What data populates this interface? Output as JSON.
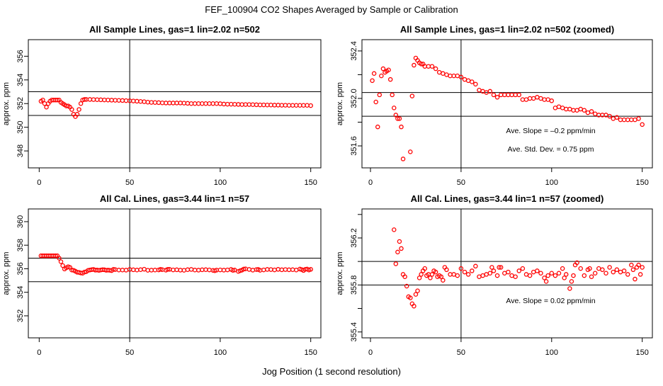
{
  "title": "FEF_100904  CO2 Shapes Averaged by Sample or Calibration",
  "xlabel": "Jog Position (1 second resolution)",
  "chart_data": [
    {
      "type": "scatter",
      "title": "All Sample Lines, gas=1 lin=2.02 n=502",
      "ylabel": "approx. ppm",
      "xlim": [
        -6,
        155.6
      ],
      "ylim": [
        346.57,
        357.4
      ],
      "xticks": [
        0,
        50,
        100,
        150
      ],
      "yticks": [
        348,
        350,
        352,
        354,
        356
      ],
      "yticklabels": [
        "348",
        "350",
        "352",
        "354",
        "356"
      ],
      "hlines": [
        353,
        351
      ],
      "vline": 50,
      "color": "#ff0000",
      "annotations": [],
      "x": [
        1,
        2,
        3,
        4,
        5,
        6,
        7,
        8,
        9,
        10,
        11,
        12,
        13,
        14,
        15,
        16,
        17,
        18,
        19,
        20,
        21,
        22,
        23,
        24,
        25,
        26,
        28,
        30,
        32,
        34,
        36,
        38,
        40,
        42,
        44,
        46,
        48,
        50,
        52,
        54,
        56,
        58,
        60,
        62,
        64,
        66,
        68,
        70,
        72,
        74,
        76,
        78,
        80,
        82,
        84,
        86,
        88,
        90,
        92,
        94,
        96,
        98,
        100,
        102,
        104,
        106,
        108,
        110,
        112,
        114,
        116,
        118,
        120,
        122,
        124,
        126,
        128,
        130,
        132,
        134,
        136,
        138,
        140,
        142,
        144,
        146,
        148,
        150
      ],
      "y": [
        352.2,
        352.3,
        352.0,
        351.7,
        352.0,
        352.2,
        352.3,
        352.3,
        352.3,
        352.3,
        352.3,
        352.1,
        352.0,
        351.9,
        351.8,
        351.8,
        351.7,
        351.5,
        351.1,
        350.9,
        351.1,
        351.5,
        352.0,
        352.3,
        352.35,
        352.35,
        352.35,
        352.34,
        352.33,
        352.32,
        352.31,
        352.3,
        352.29,
        352.28,
        352.27,
        352.26,
        352.25,
        352.24,
        352.22,
        352.2,
        352.18,
        352.16,
        352.12,
        352.1,
        352.09,
        352.08,
        352.06,
        352.05,
        352.05,
        352.05,
        352.05,
        352.05,
        352.04,
        352.02,
        352.0,
        352.0,
        352.0,
        352.0,
        352.0,
        352.0,
        352.0,
        352.0,
        351.99,
        351.96,
        351.95,
        351.95,
        351.94,
        351.93,
        351.92,
        351.92,
        351.92,
        351.91,
        351.9,
        351.89,
        351.89,
        351.88,
        351.88,
        351.87,
        351.87,
        351.86,
        351.86,
        351.85,
        351.85,
        351.85,
        351.85,
        351.85,
        351.85,
        351.83
      ]
    },
    {
      "type": "scatter",
      "title": "All Sample Lines, gas=1 lin=2.02 n=502 (zoomed)",
      "ylabel": "approx. ppm",
      "xlim": [
        -4.7,
        155.6
      ],
      "ylim": [
        351.415,
        352.495
      ],
      "xticks": [
        0,
        50,
        100,
        150
      ],
      "yticks": [
        351.6,
        351.8,
        352.0,
        352.2,
        352.4
      ],
      "yticklabels": [
        "351.6",
        "",
        "352.0",
        "",
        "352.4"
      ],
      "hlines": [
        352.05,
        351.85
      ],
      "vline": 50,
      "color": "#ff0000",
      "annotations": [
        "Ave. Slope =  –0.2  ppm/min",
        "Ave. Std. Dev. =  0.75  ppm"
      ],
      "x": [
        1,
        2,
        3,
        4,
        5,
        6,
        7,
        8,
        9,
        10,
        11,
        12,
        13,
        14,
        15,
        16,
        17,
        18,
        22,
        23,
        24,
        25,
        26,
        27,
        28,
        29,
        30,
        32,
        34,
        36,
        38,
        40,
        42,
        44,
        46,
        48,
        50,
        52,
        54,
        56,
        58,
        60,
        62,
        64,
        66,
        68,
        70,
        72,
        74,
        76,
        78,
        80,
        82,
        84,
        86,
        88,
        90,
        92,
        94,
        96,
        98,
        100,
        102,
        104,
        106,
        108,
        110,
        112,
        114,
        116,
        118,
        120,
        122,
        124,
        126,
        128,
        130,
        132,
        134,
        136,
        138,
        140,
        142,
        144,
        146,
        148,
        150
      ],
      "y": [
        352.15,
        352.21,
        351.97,
        351.76,
        352.03,
        352.19,
        352.25,
        352.22,
        352.23,
        352.24,
        352.16,
        352.03,
        351.92,
        351.86,
        351.83,
        351.83,
        351.76,
        351.49,
        351.55,
        352.02,
        352.28,
        352.34,
        352.32,
        352.3,
        352.29,
        352.29,
        352.27,
        352.27,
        352.27,
        352.25,
        352.22,
        352.21,
        352.2,
        352.19,
        352.19,
        352.19,
        352.18,
        352.16,
        352.15,
        352.14,
        352.12,
        352.07,
        352.06,
        352.05,
        352.06,
        352.03,
        352.01,
        352.03,
        352.03,
        352.03,
        352.03,
        352.03,
        352.03,
        351.99,
        351.99,
        352.0,
        352.0,
        352.01,
        352.0,
        351.99,
        351.99,
        351.98,
        351.92,
        351.93,
        351.92,
        351.91,
        351.91,
        351.9,
        351.9,
        351.91,
        351.9,
        351.88,
        351.89,
        351.87,
        351.86,
        351.86,
        351.86,
        351.85,
        351.83,
        351.84,
        351.82,
        351.82,
        351.82,
        351.82,
        351.82,
        351.83,
        351.78
      ]
    },
    {
      "type": "scatter",
      "title": "All Cal. Lines, gas=3.44 lin=1 n=57",
      "ylabel": "approx. ppm",
      "xlim": [
        -6,
        155.6
      ],
      "ylim": [
        350.13,
        361.08
      ],
      "xticks": [
        0,
        50,
        100,
        150
      ],
      "yticks": [
        352,
        354,
        356,
        358,
        360
      ],
      "yticklabels": [
        "352",
        "354",
        "356",
        "358",
        "360"
      ],
      "hlines": [
        356.9,
        354.9
      ],
      "vline": 50,
      "color": "#ff0000",
      "annotations": [],
      "x": [
        1,
        2,
        3,
        4,
        5,
        6,
        7,
        8,
        9,
        10,
        11,
        12,
        13,
        14,
        15,
        16,
        17,
        18,
        19,
        20,
        21,
        22,
        23,
        24,
        25,
        26,
        27,
        28,
        29,
        30,
        31,
        32,
        33,
        34,
        35,
        36,
        37,
        38,
        39,
        40,
        41,
        42,
        44,
        46,
        48,
        50,
        52,
        54,
        56,
        58,
        60,
        62,
        64,
        66,
        67,
        68,
        70,
        71,
        72,
        74,
        76,
        78,
        80,
        82,
        84,
        86,
        88,
        90,
        92,
        94,
        96,
        97,
        98,
        100,
        102,
        104,
        106,
        107,
        108,
        110,
        111,
        112,
        113,
        114,
        116,
        118,
        120,
        121,
        122,
        124,
        126,
        128,
        130,
        132,
        134,
        136,
        138,
        140,
        142,
        144,
        145,
        146,
        147,
        148,
        149,
        150
      ],
      "y": [
        357.1,
        357.1,
        357.1,
        357.1,
        357.1,
        357.1,
        357.1,
        357.1,
        357.1,
        357.1,
        356.9,
        356.6,
        356.27,
        355.98,
        356.08,
        356.17,
        356.11,
        355.89,
        355.87,
        355.79,
        355.7,
        355.69,
        355.64,
        355.62,
        355.72,
        355.75,
        355.86,
        355.89,
        355.92,
        355.94,
        355.88,
        355.89,
        355.86,
        355.89,
        355.92,
        355.91,
        355.87,
        355.88,
        355.87,
        355.84,
        355.95,
        355.93,
        355.89,
        355.89,
        355.88,
        355.94,
        355.91,
        355.89,
        355.92,
        355.96,
        355.87,
        355.88,
        355.89,
        355.9,
        355.95,
        355.92,
        355.88,
        355.95,
        355.95,
        355.9,
        355.91,
        355.88,
        355.87,
        355.92,
        355.94,
        355.89,
        355.88,
        355.91,
        355.92,
        355.9,
        355.86,
        355.83,
        355.88,
        355.9,
        355.88,
        355.9,
        355.94,
        355.86,
        355.89,
        355.77,
        355.83,
        355.88,
        355.97,
        355.99,
        355.94,
        355.88,
        355.93,
        355.94,
        355.87,
        355.9,
        355.94,
        355.93,
        355.9,
        355.95,
        355.91,
        355.93,
        355.91,
        355.92,
        355.89,
        355.97,
        355.93,
        355.85,
        355.95,
        355.97,
        355.89,
        355.95
      ]
    },
    {
      "type": "scatter",
      "title": "All Cal. Lines, gas=3.44 lin=1 n=57 (zoomed)",
      "ylabel": "approx. ppm",
      "xlim": [
        -4.7,
        155.6
      ],
      "ylim": [
        355.35,
        356.447
      ],
      "xticks": [
        0,
        50,
        100,
        150
      ],
      "yticks": [
        355.4,
        355.6,
        355.8,
        356.0,
        356.2,
        356.4
      ],
      "yticklabels": [
        "355.4",
        "",
        "355.8",
        "",
        "356.2",
        ""
      ],
      "hlines": [
        356.0,
        355.8
      ],
      "vline": 50,
      "color": "#ff0000",
      "annotations": [
        "Ave. Slope =  0.02  ppm/min"
      ],
      "x": [
        13,
        14,
        15,
        16,
        17,
        18,
        19,
        20,
        21,
        22,
        23,
        24,
        25,
        26,
        27,
        28,
        29,
        30,
        31,
        32,
        33,
        34,
        35,
        36,
        37,
        38,
        39,
        40,
        41,
        42,
        44,
        46,
        48,
        50,
        52,
        54,
        56,
        58,
        60,
        62,
        64,
        66,
        67,
        68,
        70,
        71,
        72,
        74,
        76,
        78,
        80,
        82,
        84,
        86,
        88,
        90,
        92,
        94,
        96,
        97,
        98,
        100,
        102,
        104,
        106,
        107,
        108,
        110,
        111,
        112,
        113,
        114,
        116,
        118,
        120,
        121,
        122,
        124,
        126,
        128,
        130,
        132,
        134,
        136,
        138,
        140,
        142,
        144,
        145,
        146,
        147,
        148,
        149,
        150
      ],
      "y": [
        356.27,
        355.98,
        356.08,
        356.17,
        356.11,
        355.89,
        355.87,
        355.79,
        355.7,
        355.69,
        355.64,
        355.62,
        355.72,
        355.75,
        355.86,
        355.89,
        355.92,
        355.94,
        355.88,
        355.89,
        355.86,
        355.89,
        355.92,
        355.91,
        355.87,
        355.88,
        355.87,
        355.84,
        355.95,
        355.93,
        355.89,
        355.89,
        355.88,
        355.94,
        355.91,
        355.89,
        355.92,
        355.96,
        355.87,
        355.88,
        355.89,
        355.9,
        355.95,
        355.92,
        355.88,
        355.95,
        355.95,
        355.9,
        355.91,
        355.88,
        355.87,
        355.92,
        355.94,
        355.89,
        355.88,
        355.91,
        355.92,
        355.9,
        355.86,
        355.83,
        355.88,
        355.9,
        355.88,
        355.9,
        355.94,
        355.86,
        355.89,
        355.77,
        355.83,
        355.88,
        355.97,
        355.99,
        355.94,
        355.88,
        355.93,
        355.94,
        355.87,
        355.9,
        355.94,
        355.93,
        355.9,
        355.95,
        355.91,
        355.93,
        355.91,
        355.92,
        355.89,
        355.97,
        355.93,
        355.85,
        355.95,
        355.97,
        355.89,
        355.95
      ]
    }
  ]
}
